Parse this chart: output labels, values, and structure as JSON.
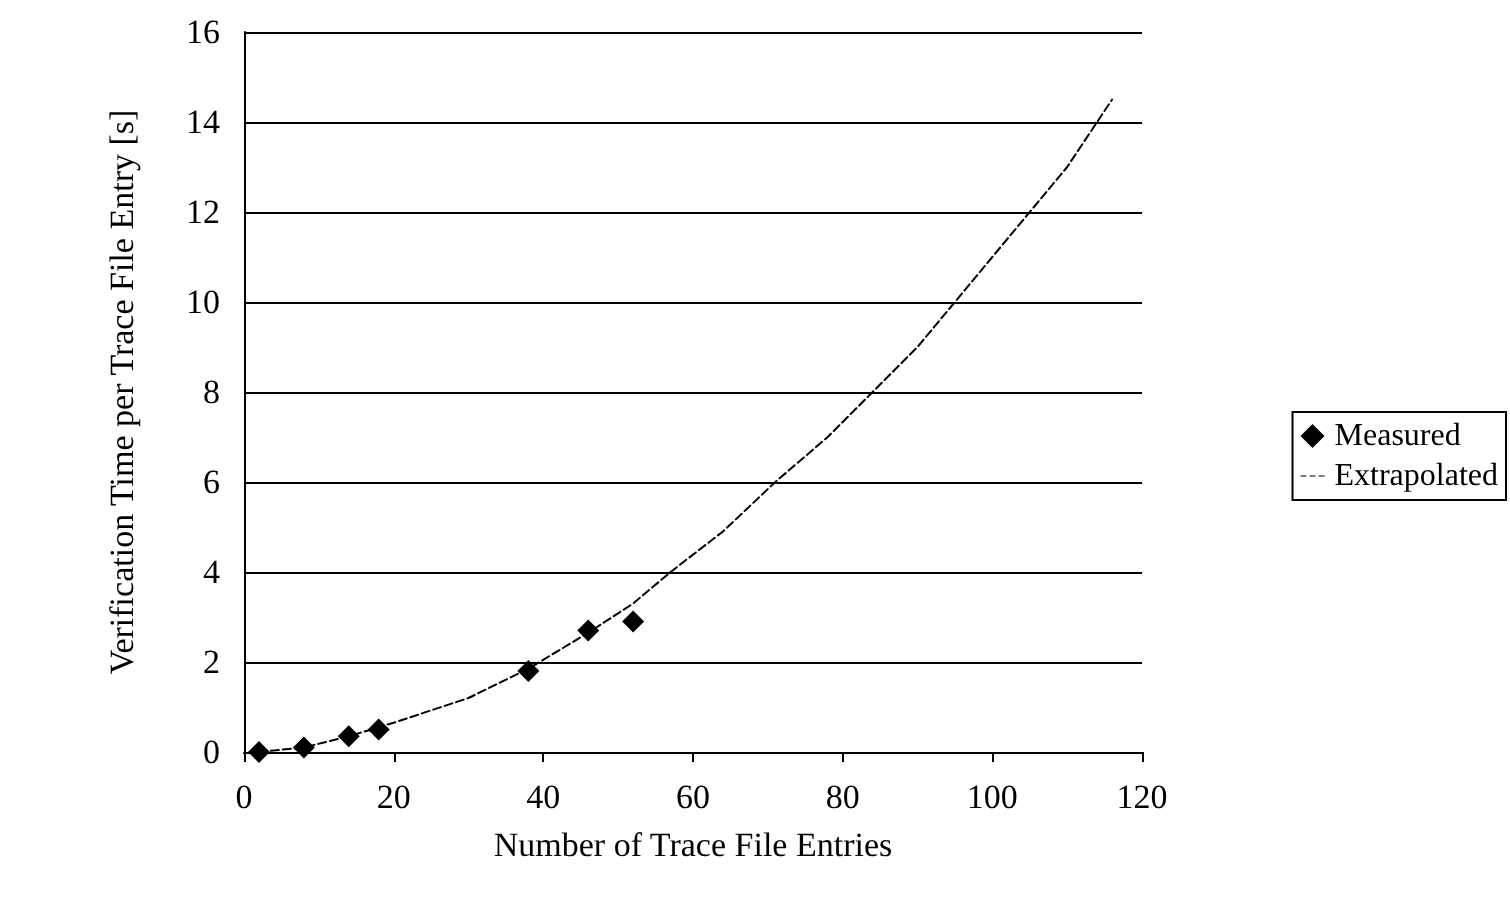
{
  "chart_data": {
    "type": "scatter",
    "xlabel": "Number of Trace File Entries",
    "ylabel": "Verification Time per Trace File Entry [s]",
    "xlim": [
      0,
      120
    ],
    "xticks": [
      0,
      20,
      40,
      60,
      80,
      100,
      120
    ],
    "ylim": [
      0,
      16
    ],
    "yticks": [
      0,
      2,
      4,
      6,
      8,
      10,
      12,
      14,
      16
    ],
    "grid": "y",
    "legend": "right",
    "series": [
      {
        "name": "Measured",
        "type": "scatter",
        "marker": "diamond",
        "color": "#000000",
        "x": [
          2,
          8,
          14,
          18,
          38,
          46,
          52
        ],
        "values": [
          0,
          0.1,
          0.35,
          0.5,
          1.8,
          2.7,
          2.9
        ]
      },
      {
        "name": "Extrapolated",
        "type": "line",
        "marker": "none",
        "line_style": "dashed",
        "color": "#000000",
        "x": [
          2,
          8,
          14,
          20,
          30,
          38,
          46,
          52,
          57,
          64,
          71,
          78,
          84,
          90,
          95,
          100,
          105,
          110,
          114,
          116
        ],
        "values": [
          0,
          0.1,
          0.35,
          0.65,
          1.2,
          1.85,
          2.65,
          3.3,
          4,
          4.9,
          6,
          7,
          8,
          9,
          10,
          11,
          12,
          13,
          14,
          14.5
        ]
      }
    ]
  }
}
